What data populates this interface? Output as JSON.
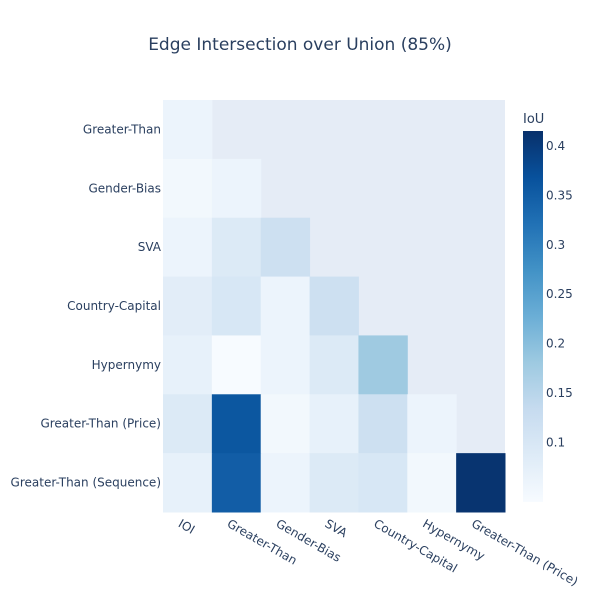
{
  "chart_data": {
    "type": "heatmap",
    "title": "Edge Intersection over Union (85%)",
    "x_categories": [
      "IOI",
      "Greater-Than",
      "Gender-Bias",
      "SVA",
      "Country-Capital",
      "Hypernymy",
      "Greater-Than (Price)"
    ],
    "y_categories": [
      "Greater-Than",
      "Gender-Bias",
      "SVA",
      "Country-Capital",
      "Hypernymy",
      "Greater-Than (Price)",
      "Greater-Than (Sequence)"
    ],
    "values": [
      [
        0.06,
        null,
        null,
        null,
        null,
        null,
        null
      ],
      [
        0.05,
        0.06,
        null,
        null,
        null,
        null,
        null
      ],
      [
        0.06,
        0.09,
        0.12,
        null,
        null,
        null,
        null
      ],
      [
        0.08,
        0.1,
        0.06,
        0.12,
        null,
        null,
        null
      ],
      [
        0.07,
        0.04,
        0.06,
        0.09,
        0.18,
        null,
        null
      ],
      [
        0.09,
        0.36,
        0.05,
        0.07,
        0.12,
        0.06,
        null
      ],
      [
        0.07,
        0.35,
        0.06,
        0.09,
        0.1,
        0.05,
        0.41
      ]
    ],
    "zmin": 0.04,
    "zmax": 0.415,
    "colorbar": {
      "title": "IoU",
      "ticks": [
        0.1,
        0.15,
        0.2,
        0.25,
        0.3,
        0.35,
        0.4
      ],
      "tick_labels": [
        "0.1",
        "0.15",
        "0.2",
        "0.25",
        "0.3",
        "0.35",
        "0.4"
      ]
    },
    "colorscale": "Blues",
    "colors": {
      "plot_background": "#e5ecf6",
      "text": "#2a3f5f",
      "scale": [
        "#f7fbff",
        "#deebf7",
        "#c6dbef",
        "#9ecae1",
        "#6baed6",
        "#4292c6",
        "#2171b5",
        "#08519c",
        "#08306b"
      ]
    }
  }
}
